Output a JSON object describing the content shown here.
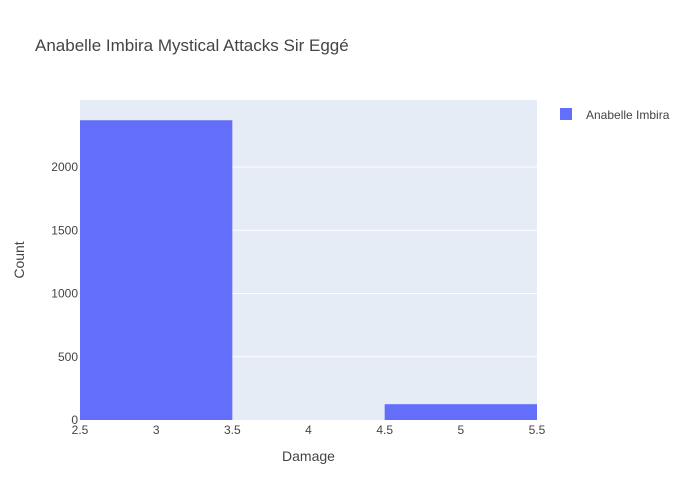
{
  "chart_data": {
    "type": "bar",
    "title": "Anabelle Imbira Mystical Attacks Sir Eggé",
    "xlabel": "Damage",
    "ylabel": "Count",
    "xlim": [
      2.5,
      5.5
    ],
    "ylim": [
      0,
      2530
    ],
    "x_ticks": [
      "2.5",
      "3",
      "3.5",
      "4",
      "4.5",
      "5",
      "5.5"
    ],
    "y_ticks": [
      "0",
      "500",
      "1000",
      "1500",
      "2000"
    ],
    "grid": true,
    "legend_position": "top-right",
    "series": [
      {
        "name": "Anabelle Imbira",
        "color": "#636efa",
        "bins": [
          {
            "start": 2.5,
            "end": 3.5,
            "count": 2370
          },
          {
            "start": 3.5,
            "end": 4.5,
            "count": 0
          },
          {
            "start": 4.5,
            "end": 5.5,
            "count": 125
          }
        ]
      }
    ],
    "plot_background": "#e5ecf6"
  }
}
